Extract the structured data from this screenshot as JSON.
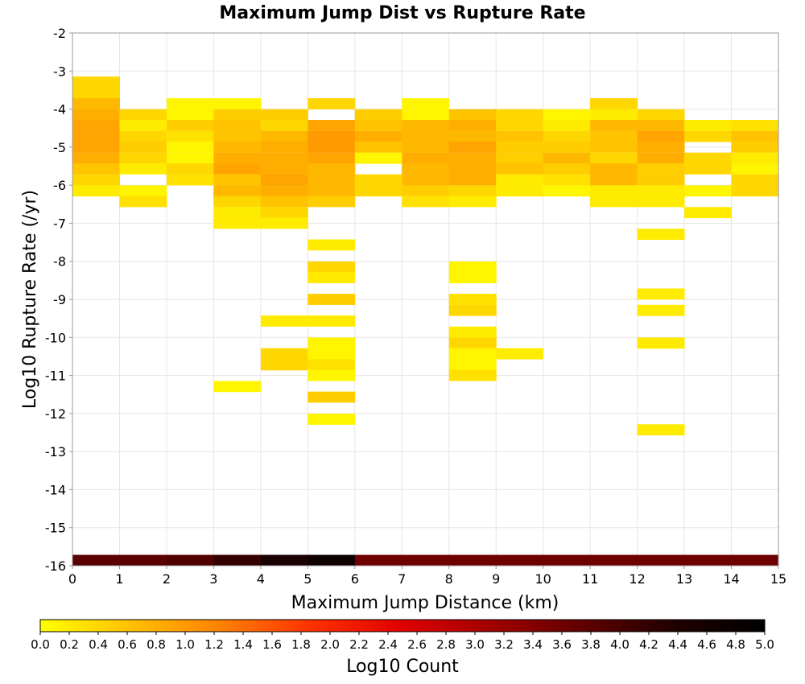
{
  "chart_data": {
    "type": "heatmap",
    "title": "Maximum Jump Dist vs Rupture Rate",
    "xlabel": "Maximum Jump Distance (km)",
    "ylabel": "Log10 Rupture Rate (/yr)",
    "xlim": [
      0,
      15
    ],
    "ylim": [
      -16,
      -2
    ],
    "x_ticks": [
      "0",
      "1",
      "2",
      "3",
      "4",
      "5",
      "6",
      "7",
      "8",
      "9",
      "10",
      "11",
      "12",
      "13",
      "14",
      "15"
    ],
    "y_ticks": [
      "-2",
      "-3",
      "-4",
      "-5",
      "-6",
      "-7",
      "-8",
      "-9",
      "-10",
      "-11",
      "-12",
      "-13",
      "-14",
      "-15",
      "-16"
    ],
    "x_bin_width": 1,
    "y_bin_height": 0.286,
    "colorbar": {
      "label": "Log10 Count",
      "range": [
        0,
        5
      ],
      "ticks": [
        "0.0",
        "0.2",
        "0.4",
        "0.6",
        "0.8",
        "1.0",
        "1.2",
        "1.4",
        "1.6",
        "1.8",
        "2.0",
        "2.2",
        "2.4",
        "2.6",
        "2.8",
        "3.0",
        "3.2",
        "3.4",
        "3.6",
        "3.8",
        "4.0",
        "4.2",
        "4.4",
        "4.6",
        "4.8",
        "5.0"
      ],
      "colors": [
        "#ffff00",
        "#ffc000",
        "#ff8000",
        "#ff3000",
        "#e00000",
        "#a00000",
        "#600000",
        "#200000",
        "#000000"
      ]
    },
    "cells": [
      {
        "x": 0,
        "y": -3.43,
        "v": 0.4
      },
      {
        "x": 0,
        "y": -3.71,
        "v": 0.4
      },
      {
        "x": 0,
        "y": -4.0,
        "v": 0.7
      },
      {
        "x": 0,
        "y": -4.29,
        "v": 0.8
      },
      {
        "x": 0,
        "y": -4.57,
        "v": 0.9
      },
      {
        "x": 0,
        "y": -4.86,
        "v": 0.9
      },
      {
        "x": 0,
        "y": -5.14,
        "v": 0.9
      },
      {
        "x": 0,
        "y": -5.43,
        "v": 0.8
      },
      {
        "x": 0,
        "y": -5.71,
        "v": 0.6
      },
      {
        "x": 0,
        "y": -6.0,
        "v": 0.4
      },
      {
        "x": 0,
        "y": -6.29,
        "v": 0.2
      },
      {
        "x": 1,
        "y": -4.29,
        "v": 0.4
      },
      {
        "x": 1,
        "y": -4.57,
        "v": 0.2
      },
      {
        "x": 1,
        "y": -4.86,
        "v": 0.4
      },
      {
        "x": 1,
        "y": -5.14,
        "v": 0.5
      },
      {
        "x": 1,
        "y": -5.43,
        "v": 0.4
      },
      {
        "x": 1,
        "y": -5.71,
        "v": 0.2
      },
      {
        "x": 1,
        "y": -6.29,
        "v": 0.1
      },
      {
        "x": 1,
        "y": -6.57,
        "v": 0.3
      },
      {
        "x": 2,
        "y": -4.0,
        "v": 0.1
      },
      {
        "x": 2,
        "y": -4.29,
        "v": 0.1
      },
      {
        "x": 2,
        "y": -4.57,
        "v": 0.5
      },
      {
        "x": 2,
        "y": -4.86,
        "v": 0.3
      },
      {
        "x": 2,
        "y": -5.14,
        "v": 0.1
      },
      {
        "x": 2,
        "y": -5.43,
        "v": 0.1
      },
      {
        "x": 2,
        "y": -5.71,
        "v": 0.4
      },
      {
        "x": 2,
        "y": -6.0,
        "v": 0.3
      },
      {
        "x": 3,
        "y": -4.0,
        "v": 0.1
      },
      {
        "x": 3,
        "y": -4.29,
        "v": 0.5
      },
      {
        "x": 3,
        "y": -4.57,
        "v": 0.6
      },
      {
        "x": 3,
        "y": -4.86,
        "v": 0.6
      },
      {
        "x": 3,
        "y": -5.14,
        "v": 0.7
      },
      {
        "x": 3,
        "y": -5.43,
        "v": 0.8
      },
      {
        "x": 3,
        "y": -5.71,
        "v": 0.9
      },
      {
        "x": 3,
        "y": -6.0,
        "v": 0.6
      },
      {
        "x": 3,
        "y": -6.29,
        "v": 0.7
      },
      {
        "x": 3,
        "y": -6.57,
        "v": 0.4
      },
      {
        "x": 3,
        "y": -6.86,
        "v": 0.2
      },
      {
        "x": 3,
        "y": -7.14,
        "v": 0.2
      },
      {
        "x": 3,
        "y": -11.43,
        "v": 0.1
      },
      {
        "x": 4,
        "y": -4.29,
        "v": 0.5
      },
      {
        "x": 4,
        "y": -4.57,
        "v": 0.4
      },
      {
        "x": 4,
        "y": -4.86,
        "v": 0.7
      },
      {
        "x": 4,
        "y": -5.14,
        "v": 0.8
      },
      {
        "x": 4,
        "y": -5.43,
        "v": 0.8
      },
      {
        "x": 4,
        "y": -5.71,
        "v": 0.8
      },
      {
        "x": 4,
        "y": -6.0,
        "v": 0.9
      },
      {
        "x": 4,
        "y": -6.29,
        "v": 0.8
      },
      {
        "x": 4,
        "y": -6.57,
        "v": 0.6
      },
      {
        "x": 4,
        "y": -6.86,
        "v": 0.4
      },
      {
        "x": 4,
        "y": -7.14,
        "v": 0.2
      },
      {
        "x": 4,
        "y": -9.71,
        "v": 0.2
      },
      {
        "x": 4,
        "y": -10.57,
        "v": 0.4
      },
      {
        "x": 4,
        "y": -10.86,
        "v": 0.4
      },
      {
        "x": 5,
        "y": -4.0,
        "v": 0.4
      },
      {
        "x": 5,
        "y": -4.57,
        "v": 0.9
      },
      {
        "x": 5,
        "y": -4.86,
        "v": 1.0
      },
      {
        "x": 5,
        "y": -5.14,
        "v": 1.0
      },
      {
        "x": 5,
        "y": -5.43,
        "v": 0.9
      },
      {
        "x": 5,
        "y": -5.71,
        "v": 0.7
      },
      {
        "x": 5,
        "y": -6.0,
        "v": 0.7
      },
      {
        "x": 5,
        "y": -6.29,
        "v": 0.7
      },
      {
        "x": 5,
        "y": -6.57,
        "v": 0.5
      },
      {
        "x": 5,
        "y": -7.71,
        "v": 0.2
      },
      {
        "x": 5,
        "y": -8.29,
        "v": 0.4
      },
      {
        "x": 5,
        "y": -8.57,
        "v": 0.2
      },
      {
        "x": 5,
        "y": -9.14,
        "v": 0.5
      },
      {
        "x": 5,
        "y": -9.71,
        "v": 0.2
      },
      {
        "x": 5,
        "y": -10.29,
        "v": 0.1
      },
      {
        "x": 5,
        "y": -10.57,
        "v": 0.1
      },
      {
        "x": 5,
        "y": -10.86,
        "v": 0.3
      },
      {
        "x": 5,
        "y": -11.14,
        "v": 0.1
      },
      {
        "x": 5,
        "y": -11.71,
        "v": 0.5
      },
      {
        "x": 5,
        "y": -12.29,
        "v": 0.1
      },
      {
        "x": 6,
        "y": -4.29,
        "v": 0.5
      },
      {
        "x": 6,
        "y": -4.57,
        "v": 0.6
      },
      {
        "x": 6,
        "y": -4.86,
        "v": 0.8
      },
      {
        "x": 6,
        "y": -5.14,
        "v": 0.6
      },
      {
        "x": 6,
        "y": -5.43,
        "v": 0.1
      },
      {
        "x": 6,
        "y": -6.0,
        "v": 0.4
      },
      {
        "x": 6,
        "y": -6.29,
        "v": 0.4
      },
      {
        "x": 7,
        "y": -4.0,
        "v": 0.1
      },
      {
        "x": 7,
        "y": -4.29,
        "v": 0.1
      },
      {
        "x": 7,
        "y": -4.57,
        "v": 0.7
      },
      {
        "x": 7,
        "y": -4.86,
        "v": 0.7
      },
      {
        "x": 7,
        "y": -5.14,
        "v": 0.7
      },
      {
        "x": 7,
        "y": -5.43,
        "v": 0.8
      },
      {
        "x": 7,
        "y": -5.71,
        "v": 0.7
      },
      {
        "x": 7,
        "y": -6.0,
        "v": 0.7
      },
      {
        "x": 7,
        "y": -6.29,
        "v": 0.5
      },
      {
        "x": 7,
        "y": -6.57,
        "v": 0.3
      },
      {
        "x": 8,
        "y": -4.29,
        "v": 0.6
      },
      {
        "x": 8,
        "y": -4.57,
        "v": 0.8
      },
      {
        "x": 8,
        "y": -4.86,
        "v": 0.7
      },
      {
        "x": 8,
        "y": -5.14,
        "v": 0.9
      },
      {
        "x": 8,
        "y": -5.43,
        "v": 0.8
      },
      {
        "x": 8,
        "y": -5.71,
        "v": 0.8
      },
      {
        "x": 8,
        "y": -6.0,
        "v": 0.8
      },
      {
        "x": 8,
        "y": -6.29,
        "v": 0.4
      },
      {
        "x": 8,
        "y": -6.57,
        "v": 0.2
      },
      {
        "x": 8,
        "y": -8.29,
        "v": 0.1
      },
      {
        "x": 8,
        "y": -8.57,
        "v": 0.1
      },
      {
        "x": 8,
        "y": -9.14,
        "v": 0.3
      },
      {
        "x": 8,
        "y": -9.43,
        "v": 0.4
      },
      {
        "x": 8,
        "y": -10.0,
        "v": 0.2
      },
      {
        "x": 8,
        "y": -10.29,
        "v": 0.4
      },
      {
        "x": 8,
        "y": -10.57,
        "v": 0.1
      },
      {
        "x": 8,
        "y": -10.86,
        "v": 0.1
      },
      {
        "x": 8,
        "y": -11.14,
        "v": 0.3
      },
      {
        "x": 9,
        "y": -4.29,
        "v": 0.4
      },
      {
        "x": 9,
        "y": -4.57,
        "v": 0.4
      },
      {
        "x": 9,
        "y": -4.86,
        "v": 0.6
      },
      {
        "x": 9,
        "y": -5.14,
        "v": 0.5
      },
      {
        "x": 9,
        "y": -5.43,
        "v": 0.5
      },
      {
        "x": 9,
        "y": -5.71,
        "v": 0.6
      },
      {
        "x": 9,
        "y": -6.0,
        "v": 0.2
      },
      {
        "x": 9,
        "y": -6.29,
        "v": 0.2
      },
      {
        "x": 9,
        "y": -10.57,
        "v": 0.2
      },
      {
        "x": 10,
        "y": -4.29,
        "v": 0.1
      },
      {
        "x": 10,
        "y": -4.57,
        "v": 0.2
      },
      {
        "x": 10,
        "y": -4.86,
        "v": 0.4
      },
      {
        "x": 10,
        "y": -5.14,
        "v": 0.5
      },
      {
        "x": 10,
        "y": -5.43,
        "v": 0.7
      },
      {
        "x": 10,
        "y": -5.71,
        "v": 0.5
      },
      {
        "x": 10,
        "y": -6.0,
        "v": 0.3
      },
      {
        "x": 10,
        "y": -6.29,
        "v": 0.1
      },
      {
        "x": 11,
        "y": -4.0,
        "v": 0.4
      },
      {
        "x": 11,
        "y": -4.29,
        "v": 0.2
      },
      {
        "x": 11,
        "y": -4.57,
        "v": 0.7
      },
      {
        "x": 11,
        "y": -4.86,
        "v": 0.6
      },
      {
        "x": 11,
        "y": -5.14,
        "v": 0.6
      },
      {
        "x": 11,
        "y": -5.43,
        "v": 0.4
      },
      {
        "x": 11,
        "y": -5.71,
        "v": 0.7
      },
      {
        "x": 11,
        "y": -6.0,
        "v": 0.7
      },
      {
        "x": 11,
        "y": -6.29,
        "v": 0.2
      },
      {
        "x": 11,
        "y": -6.57,
        "v": 0.2
      },
      {
        "x": 12,
        "y": -4.29,
        "v": 0.4
      },
      {
        "x": 12,
        "y": -4.57,
        "v": 0.7
      },
      {
        "x": 12,
        "y": -4.86,
        "v": 0.9
      },
      {
        "x": 12,
        "y": -5.14,
        "v": 0.8
      },
      {
        "x": 12,
        "y": -5.43,
        "v": 0.8
      },
      {
        "x": 12,
        "y": -5.71,
        "v": 0.5
      },
      {
        "x": 12,
        "y": -6.0,
        "v": 0.5
      },
      {
        "x": 12,
        "y": -6.29,
        "v": 0.2
      },
      {
        "x": 12,
        "y": -6.57,
        "v": 0.2
      },
      {
        "x": 12,
        "y": -7.43,
        "v": 0.2
      },
      {
        "x": 12,
        "y": -9.0,
        "v": 0.2
      },
      {
        "x": 12,
        "y": -9.43,
        "v": 0.2
      },
      {
        "x": 12,
        "y": -10.29,
        "v": 0.2
      },
      {
        "x": 12,
        "y": -12.57,
        "v": 0.2
      },
      {
        "x": 13,
        "y": -4.57,
        "v": 0.2
      },
      {
        "x": 13,
        "y": -4.86,
        "v": 0.4
      },
      {
        "x": 13,
        "y": -5.43,
        "v": 0.4
      },
      {
        "x": 13,
        "y": -5.71,
        "v": 0.4
      },
      {
        "x": 13,
        "y": -6.29,
        "v": 0.1
      },
      {
        "x": 13,
        "y": -6.86,
        "v": 0.2
      },
      {
        "x": 14,
        "y": -4.57,
        "v": 0.3
      },
      {
        "x": 14,
        "y": -4.86,
        "v": 0.6
      },
      {
        "x": 14,
        "y": -5.14,
        "v": 0.5
      },
      {
        "x": 14,
        "y": -5.43,
        "v": 0.2
      },
      {
        "x": 14,
        "y": -5.71,
        "v": 0.1
      },
      {
        "x": 14,
        "y": -6.0,
        "v": 0.4
      },
      {
        "x": 14,
        "y": -6.29,
        "v": 0.4
      },
      {
        "x": 0,
        "y": -16.0,
        "v": 3.8
      },
      {
        "x": 1,
        "y": -16.0,
        "v": 3.8
      },
      {
        "x": 2,
        "y": -16.0,
        "v": 3.9
      },
      {
        "x": 3,
        "y": -16.0,
        "v": 4.2
      },
      {
        "x": 4,
        "y": -16.0,
        "v": 4.5
      },
      {
        "x": 5,
        "y": -16.0,
        "v": 4.7
      },
      {
        "x": 6,
        "y": -16.0,
        "v": 3.6
      },
      {
        "x": 7,
        "y": -16.0,
        "v": 3.6
      },
      {
        "x": 8,
        "y": -16.0,
        "v": 3.6
      },
      {
        "x": 9,
        "y": -16.0,
        "v": 3.6
      },
      {
        "x": 10,
        "y": -16.0,
        "v": 3.6
      },
      {
        "x": 11,
        "y": -16.0,
        "v": 3.6
      },
      {
        "x": 12,
        "y": -16.0,
        "v": 3.6
      },
      {
        "x": 13,
        "y": -16.0,
        "v": 3.6
      },
      {
        "x": 14,
        "y": -16.0,
        "v": 3.6
      }
    ]
  }
}
